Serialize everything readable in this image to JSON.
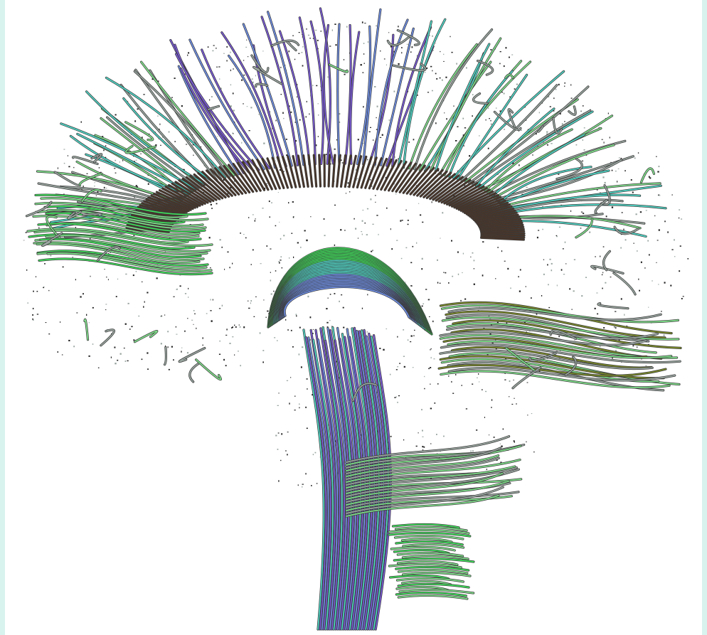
{
  "image": {
    "subject": "tractography-brain-fibers",
    "colors": {
      "background": "#ffffff",
      "border": "#d8f2ee",
      "green": "#7fe08a",
      "bright_green": "#3ee05a",
      "blue": "#6f8fe6",
      "violet": "#7a5ad8",
      "teal": "#4fd6c6",
      "brown": "#4a3528",
      "olive": "#7a8a2a",
      "grey": "#9aa6a0"
    }
  }
}
